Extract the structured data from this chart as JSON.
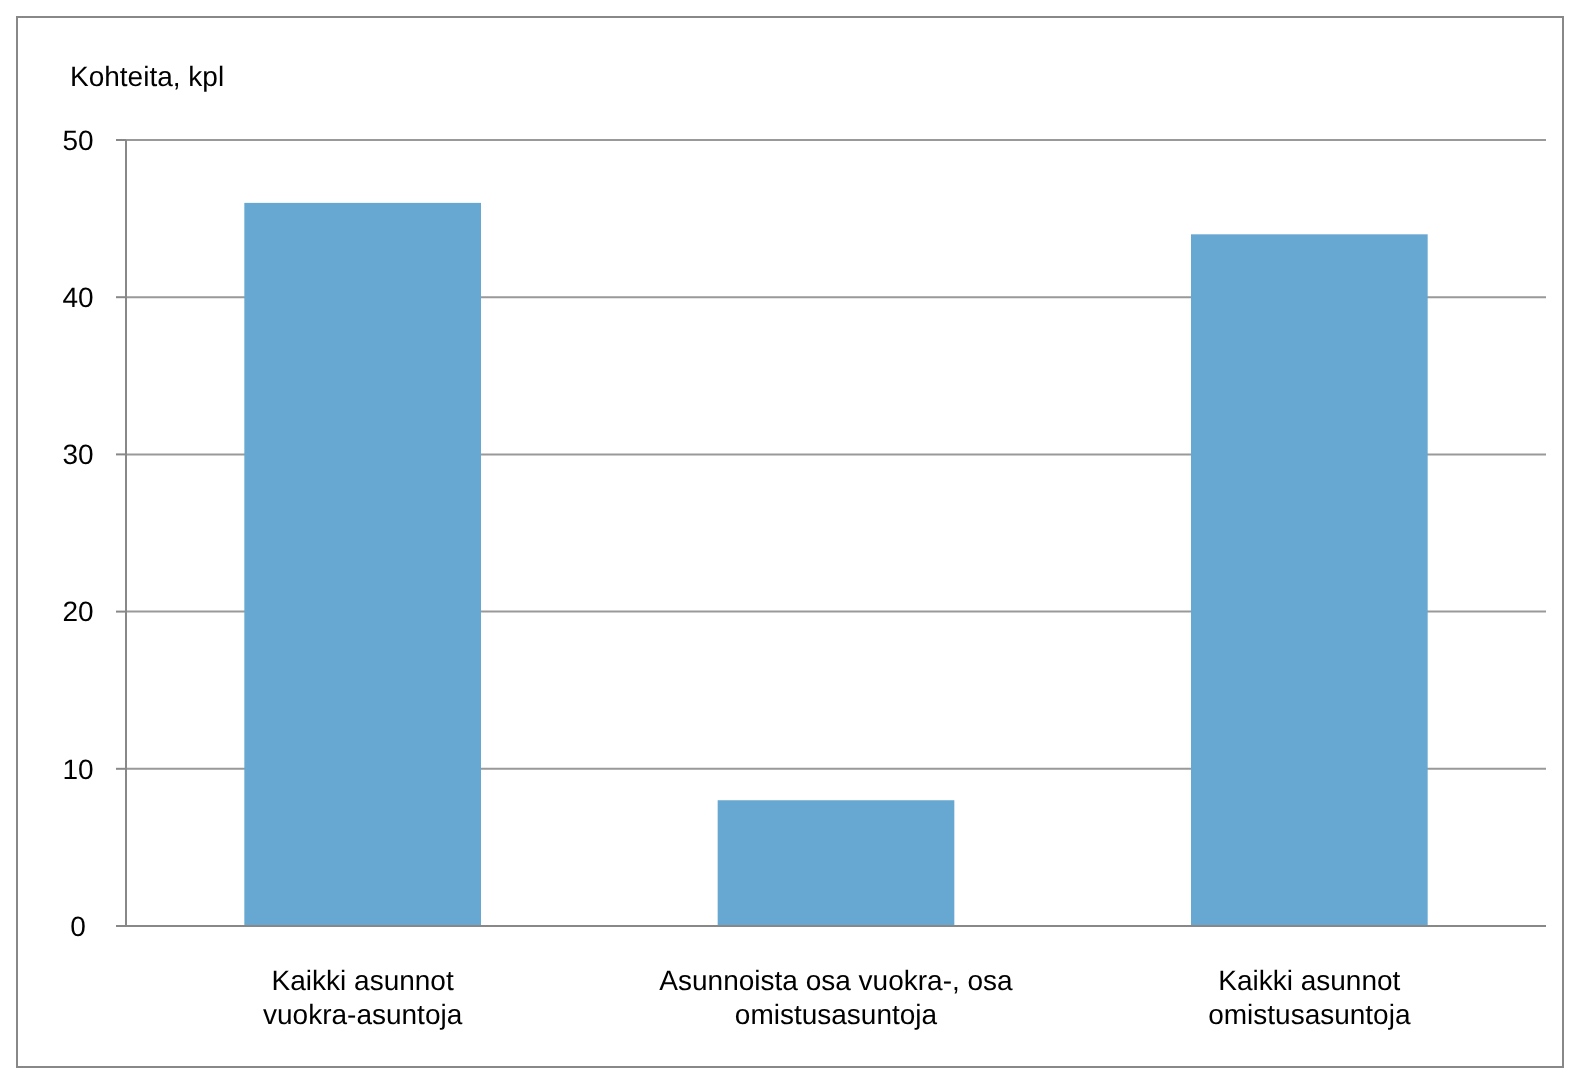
{
  "chart_data": {
    "type": "bar",
    "ylabel": "Kohteita, kpl",
    "categories": [
      "Kaikki asunnot vuokra-asuntoja",
      "Asunnoista osa vuokra-, osa omistusasuntoja",
      "Kaikki asunnot omistusasuntoja"
    ],
    "values": [
      46,
      8,
      44
    ],
    "color": "#67a8d2",
    "ylim": [
      0,
      50
    ],
    "yticks": [
      0,
      10,
      20,
      30,
      40,
      50
    ],
    "grid": "y"
  }
}
